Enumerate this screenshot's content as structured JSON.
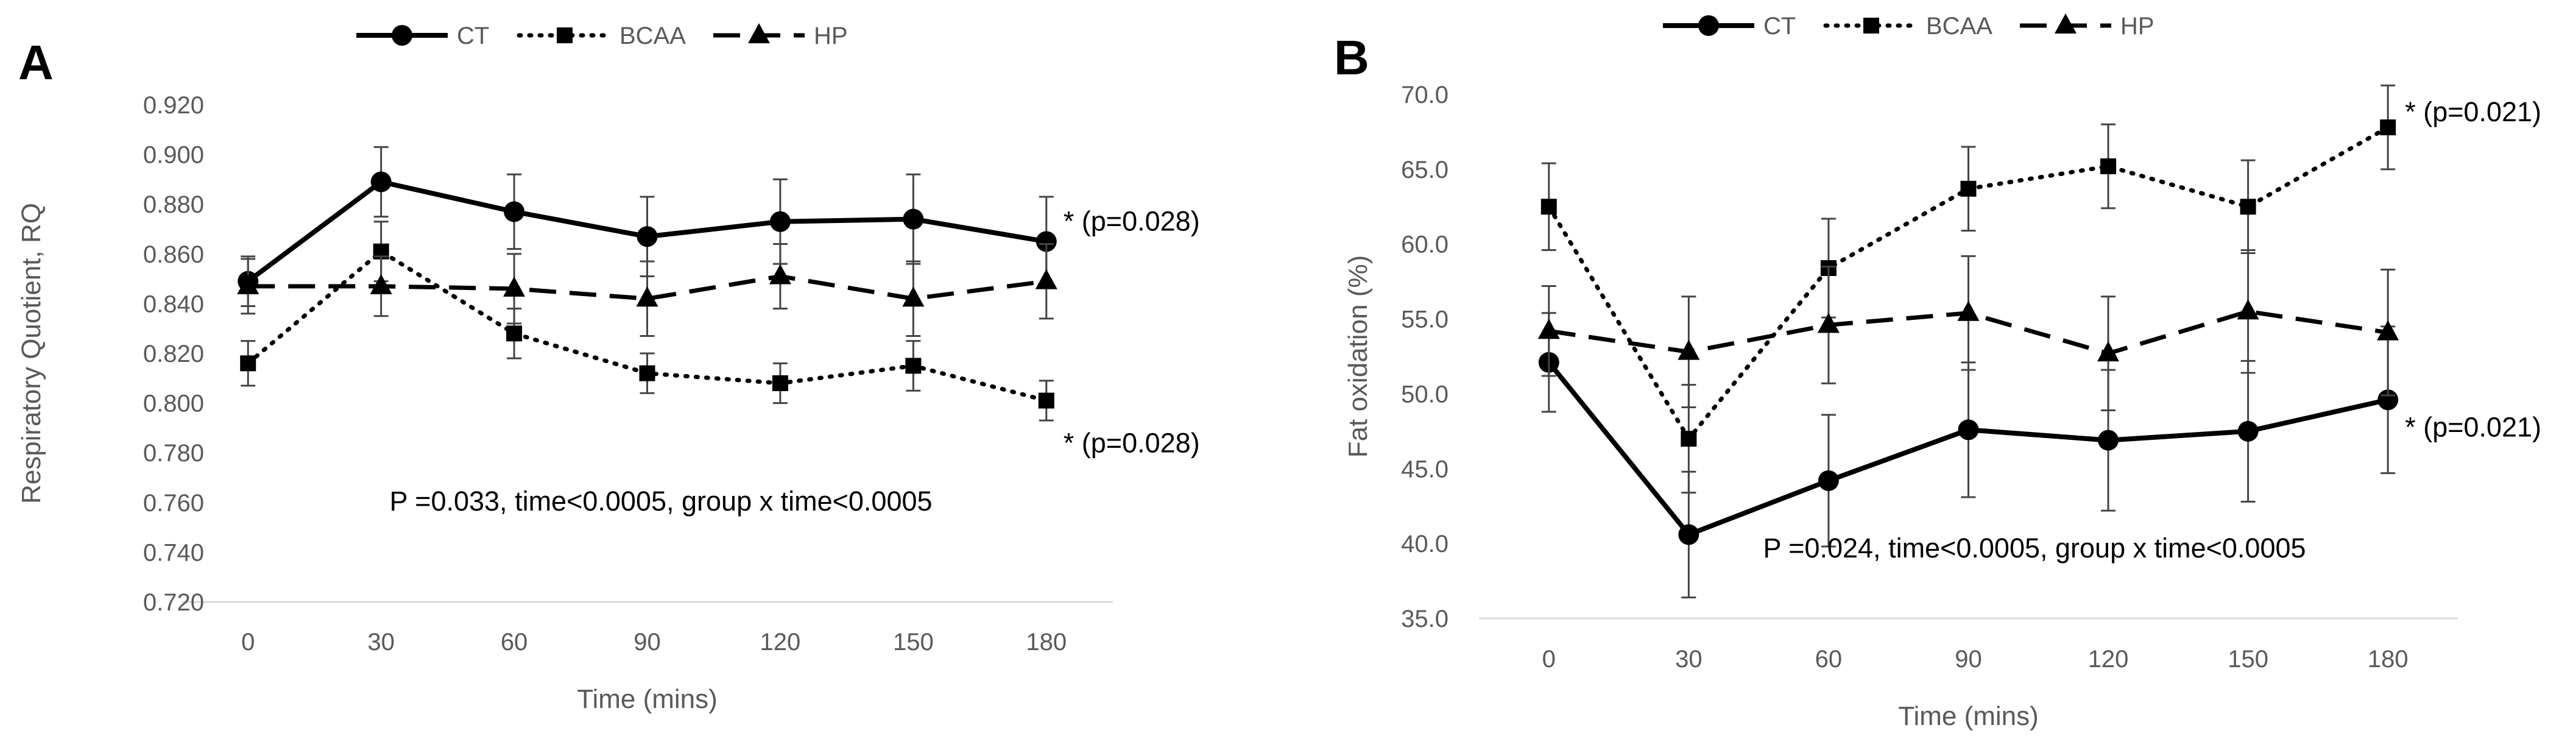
{
  "chart_data": [
    {
      "panel": "A",
      "type": "line",
      "xlabel": "Time (mins)",
      "ylabel": "Respiratory Quotient, RQ",
      "x": [
        "0",
        "30",
        "60",
        "90",
        "120",
        "150",
        "180"
      ],
      "ylim": [
        0.72,
        0.92
      ],
      "ystep": 0.02,
      "ydecimals": 3,
      "series": [
        {
          "name": "CT",
          "style": "solid",
          "marker": "circle",
          "values": [
            0.849,
            0.889,
            0.877,
            0.867,
            0.873,
            0.874,
            0.865
          ],
          "errors": [
            0.01,
            0.014,
            0.015,
            0.016,
            0.017,
            0.018,
            0.018
          ]
        },
        {
          "name": "BCAA",
          "style": "dotted",
          "marker": "square",
          "values": [
            0.816,
            0.861,
            0.828,
            0.812,
            0.808,
            0.815,
            0.801
          ],
          "errors": [
            0.009,
            0.012,
            0.01,
            0.008,
            0.008,
            0.01,
            0.008
          ]
        },
        {
          "name": "HP",
          "style": "dashed",
          "marker": "triangle",
          "values": [
            0.847,
            0.847,
            0.846,
            0.842,
            0.851,
            0.842,
            0.849
          ],
          "errors": [
            0.011,
            0.012,
            0.014,
            0.015,
            0.013,
            0.015,
            0.015
          ]
        }
      ],
      "annotations": [
        {
          "text": "* (p=0.028)",
          "series": "CT",
          "index": 6
        },
        {
          "text": "* (p=0.028)",
          "series": "BCAA",
          "index": 6
        },
        {
          "text": "P =0.033, time<0.0005, group x time<0.0005",
          "type": "stats"
        }
      ]
    },
    {
      "panel": "B",
      "type": "line",
      "xlabel": "Time (mins)",
      "ylabel": "Fat oxidation (%)",
      "x": [
        "0",
        "30",
        "60",
        "90",
        "120",
        "150",
        "180"
      ],
      "ylim": [
        35.0,
        70.0
      ],
      "ystep": 5,
      "ydecimals": 1,
      "series": [
        {
          "name": "CT",
          "style": "solid",
          "marker": "circle",
          "values": [
            52.1,
            40.6,
            44.2,
            47.6,
            46.9,
            47.5,
            49.6
          ],
          "errors": [
            3.3,
            4.2,
            4.4,
            4.5,
            4.7,
            4.7,
            4.9
          ]
        },
        {
          "name": "BCAA",
          "style": "dotted",
          "marker": "square",
          "values": [
            62.5,
            47.0,
            58.4,
            63.7,
            65.2,
            62.5,
            67.8
          ],
          "errors": [
            2.9,
            3.6,
            3.3,
            2.8,
            2.8,
            3.1,
            2.8
          ]
        },
        {
          "name": "HP",
          "style": "dashed",
          "marker": "triangle",
          "values": [
            54.2,
            52.8,
            54.6,
            55.4,
            52.7,
            55.5,
            54.1
          ],
          "errors": [
            3.0,
            3.7,
            3.9,
            3.8,
            3.8,
            4.1,
            4.2
          ]
        }
      ],
      "annotations": [
        {
          "text": "* (p=0.021)",
          "series": "BCAA",
          "index": 6
        },
        {
          "text": "* (p=0.021)",
          "series": "CT",
          "index": 6
        },
        {
          "text": "P =0.024, time<0.0005, group x time<0.0005",
          "type": "stats"
        }
      ]
    }
  ],
  "legend": {
    "items": [
      {
        "name": "CT",
        "style": "solid",
        "marker": "circle"
      },
      {
        "name": "BCAA",
        "style": "dotted",
        "marker": "square"
      },
      {
        "name": "HP",
        "style": "dashed",
        "marker": "triangle"
      }
    ]
  },
  "colors": {
    "line": "#000000",
    "axis": "#d9d9d9",
    "tick_text": "#595959",
    "error_bar": "#444444"
  }
}
